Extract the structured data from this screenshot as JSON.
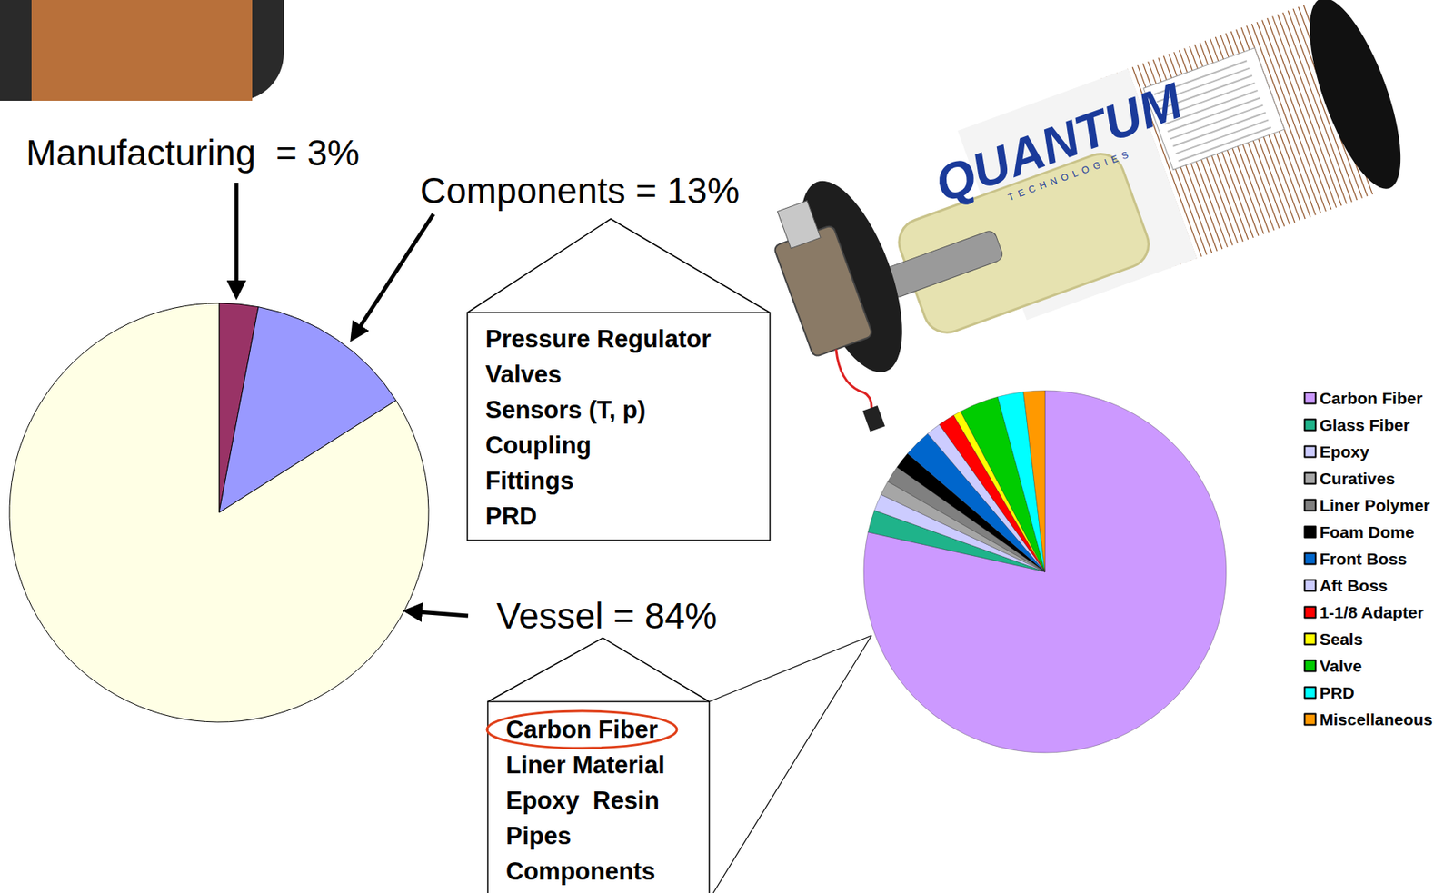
{
  "chart_data": [
    {
      "type": "pie",
      "categories": [
        "Manufacturing",
        "Components",
        "Vessel"
      ],
      "values": [
        3,
        13,
        84
      ],
      "value_labels": [
        "Manufacturing  = 3%",
        "Components = 13%",
        "Vessel = 84%"
      ],
      "colors": [
        "#993366",
        "#9999ff",
        "#ffffe5"
      ],
      "data_labels": true
    },
    {
      "type": "pie",
      "categories": [
        "Carbon Fiber",
        "Glass Fiber",
        "Epoxy",
        "Curatives",
        "Liner Polymer",
        "Foam Dome",
        "Front Boss",
        "Aft Boss",
        "1-1/8 Adapter",
        "Seals",
        "Valve",
        "PRD",
        "Miscellaneous"
      ],
      "values": [
        78.5,
        2,
        1.5,
        1.3,
        1.5,
        1.5,
        2.5,
        1.3,
        1.5,
        0.7,
        3.5,
        2.3,
        1.9
      ],
      "colors": [
        "#cc99ff",
        "#1fb38a",
        "#ccccff",
        "#a6a6a6",
        "#808080",
        "#000000",
        "#0066cc",
        "#ccccff",
        "#ff0000",
        "#ffff00",
        "#00cc00",
        "#00ffff",
        "#ff9900"
      ],
      "legend": "right"
    }
  ],
  "breakdowns": [
    {
      "slice": "Components",
      "items": [
        "Pressure Regulator",
        "Valves",
        "Sensors (T, p)",
        "Coupling",
        "Fittings",
        "PRD"
      ]
    },
    {
      "slice": "Vessel",
      "items": [
        "Carbon Fiber",
        "Liner Material",
        "Epoxy  Resin",
        "Pipes",
        "Components"
      ],
      "highlight": "Carbon Fiber"
    }
  ],
  "photo": {
    "brand": "QUANTUM",
    "maker": "TECHNOLOGIES"
  }
}
